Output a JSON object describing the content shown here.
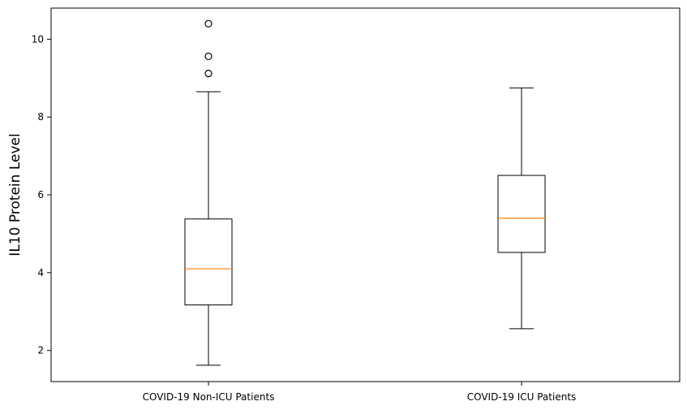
{
  "chart_data": {
    "type": "boxplot",
    "title": "",
    "xlabel": "",
    "ylabel": "IL10 Protein Level",
    "ylim": [
      1.2,
      10.8
    ],
    "yticks": [
      2,
      4,
      6,
      8,
      10
    ],
    "grid": false,
    "categories": [
      "COVID-19 Non-ICU Patients",
      "COVID-19 ICU Patients"
    ],
    "boxes": [
      {
        "category": "COVID-19 Non-ICU Patients",
        "whisker_low": 1.62,
        "q1": 3.17,
        "median": 4.1,
        "q3": 5.38,
        "whisker_high": 8.65,
        "outliers": [
          9.12,
          9.56,
          10.4
        ]
      },
      {
        "category": "COVID-19 ICU Patients",
        "whisker_low": 2.56,
        "q1": 4.52,
        "median": 5.4,
        "q3": 6.5,
        "whisker_high": 8.75,
        "outliers": []
      }
    ],
    "colors": {
      "box": "#000000",
      "median": "#ff7f0e",
      "outlier_edge": "#000000"
    }
  }
}
